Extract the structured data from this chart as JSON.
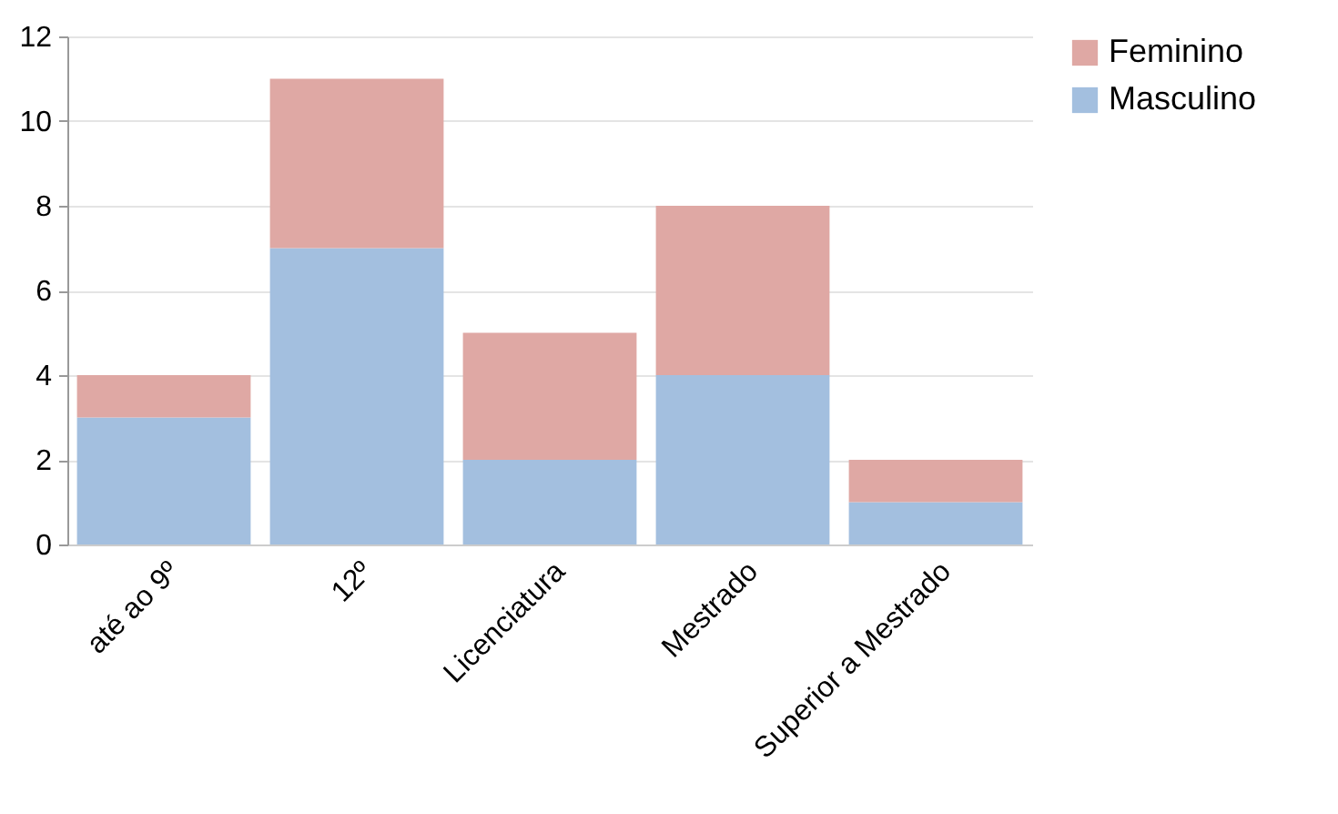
{
  "chart_data": {
    "type": "bar",
    "stacked": true,
    "categories": [
      "até ao 9º",
      "12º",
      "Licenciatura",
      "Mestrado",
      "Superior a Mestrado"
    ],
    "series": [
      {
        "name": "Masculino",
        "color": "#a3bfdf",
        "values": [
          3,
          7,
          2,
          4,
          1
        ]
      },
      {
        "name": "Feminino",
        "color": "#dfa8a4",
        "values": [
          1,
          4,
          3,
          4,
          1
        ]
      }
    ],
    "ylim": [
      0,
      12
    ],
    "yticks": [
      0,
      2,
      4,
      6,
      8,
      10,
      12
    ],
    "grid": "y",
    "legend": "right"
  }
}
